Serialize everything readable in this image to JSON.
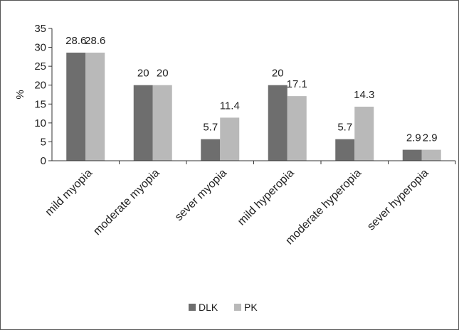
{
  "chart_data": {
    "type": "bar",
    "title": "",
    "xlabel": "",
    "ylabel": "%",
    "ylim": [
      0,
      35
    ],
    "yticks": [
      0,
      5,
      10,
      15,
      20,
      25,
      30,
      35
    ],
    "grid": false,
    "legend_position": "bottom",
    "categories": [
      "mild myopia",
      "moderate myopia",
      "sever myopia",
      "mild hyperopia",
      "moderate hyperopia",
      "sever hyperopia"
    ],
    "series": [
      {
        "name": "DLK",
        "color": "#6e6e6e",
        "values": [
          28.6,
          20,
          5.7,
          20,
          5.7,
          2.9
        ]
      },
      {
        "name": "PK",
        "color": "#b9b9b9",
        "values": [
          28.6,
          20,
          11.4,
          17.1,
          14.3,
          2.9
        ]
      }
    ]
  }
}
